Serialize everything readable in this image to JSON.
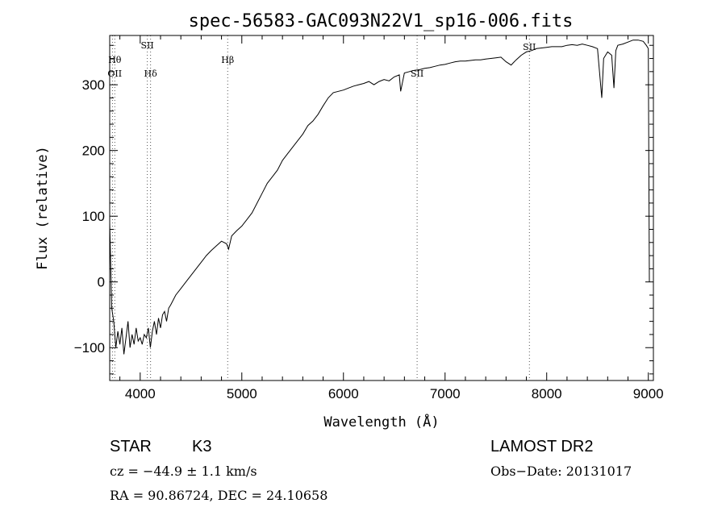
{
  "chart_data": {
    "type": "line",
    "title": "spec-56583-GAC093N22V1_sp16-006.fits",
    "xlabel": "Wavelength (Å)",
    "ylabel": "Flux (relative)",
    "xlim": [
      3700,
      9050
    ],
    "ylim": [
      -150,
      375
    ],
    "xticks": [
      4000,
      5000,
      6000,
      7000,
      8000,
      9000
    ],
    "yticks": [
      -100,
      0,
      100,
      200,
      300
    ],
    "grid": false,
    "series": [
      {
        "points": [
          [
            3700,
            90
          ],
          [
            3720,
            -40
          ],
          [
            3740,
            -60
          ],
          [
            3760,
            -100
          ],
          [
            3780,
            -75
          ],
          [
            3800,
            -95
          ],
          [
            3820,
            -70
          ],
          [
            3840,
            -110
          ],
          [
            3860,
            -85
          ],
          [
            3880,
            -60
          ],
          [
            3900,
            -100
          ],
          [
            3920,
            -80
          ],
          [
            3940,
            -95
          ],
          [
            3960,
            -70
          ],
          [
            3980,
            -90
          ],
          [
            4000,
            -85
          ],
          [
            4020,
            -95
          ],
          [
            4040,
            -80
          ],
          [
            4060,
            -85
          ],
          [
            4080,
            -70
          ],
          [
            4100,
            -100
          ],
          [
            4120,
            -75
          ],
          [
            4140,
            -60
          ],
          [
            4160,
            -80
          ],
          [
            4180,
            -55
          ],
          [
            4200,
            -70
          ],
          [
            4220,
            -50
          ],
          [
            4240,
            -45
          ],
          [
            4260,
            -60
          ],
          [
            4280,
            -40
          ],
          [
            4300,
            -35
          ],
          [
            4350,
            -20
          ],
          [
            4400,
            -10
          ],
          [
            4450,
            0
          ],
          [
            4500,
            10
          ],
          [
            4550,
            20
          ],
          [
            4600,
            30
          ],
          [
            4650,
            40
          ],
          [
            4700,
            48
          ],
          [
            4750,
            55
          ],
          [
            4800,
            62
          ],
          [
            4850,
            58
          ],
          [
            4870,
            50
          ],
          [
            4900,
            70
          ],
          [
            4950,
            78
          ],
          [
            5000,
            85
          ],
          [
            5050,
            95
          ],
          [
            5100,
            105
          ],
          [
            5150,
            120
          ],
          [
            5200,
            135
          ],
          [
            5250,
            150
          ],
          [
            5300,
            160
          ],
          [
            5350,
            170
          ],
          [
            5400,
            185
          ],
          [
            5450,
            195
          ],
          [
            5500,
            205
          ],
          [
            5550,
            215
          ],
          [
            5600,
            225
          ],
          [
            5650,
            238
          ],
          [
            5700,
            245
          ],
          [
            5750,
            255
          ],
          [
            5800,
            268
          ],
          [
            5850,
            280
          ],
          [
            5900,
            288
          ],
          [
            5950,
            290
          ],
          [
            6000,
            292
          ],
          [
            6050,
            295
          ],
          [
            6100,
            298
          ],
          [
            6150,
            300
          ],
          [
            6200,
            302
          ],
          [
            6250,
            305
          ],
          [
            6300,
            300
          ],
          [
            6350,
            305
          ],
          [
            6400,
            308
          ],
          [
            6450,
            306
          ],
          [
            6500,
            312
          ],
          [
            6550,
            315
          ],
          [
            6563,
            290
          ],
          [
            6600,
            318
          ],
          [
            6650,
            320
          ],
          [
            6700,
            322
          ],
          [
            6750,
            323
          ],
          [
            6800,
            325
          ],
          [
            6850,
            326
          ],
          [
            6900,
            328
          ],
          [
            6950,
            330
          ],
          [
            7000,
            331
          ],
          [
            7050,
            333
          ],
          [
            7100,
            335
          ],
          [
            7150,
            336
          ],
          [
            7200,
            336
          ],
          [
            7250,
            337
          ],
          [
            7300,
            338
          ],
          [
            7350,
            338
          ],
          [
            7400,
            339
          ],
          [
            7450,
            340
          ],
          [
            7500,
            341
          ],
          [
            7550,
            342
          ],
          [
            7600,
            335
          ],
          [
            7650,
            330
          ],
          [
            7700,
            338
          ],
          [
            7750,
            345
          ],
          [
            7800,
            350
          ],
          [
            7850,
            352
          ],
          [
            7900,
            355
          ],
          [
            7950,
            356
          ],
          [
            8000,
            357
          ],
          [
            8050,
            358
          ],
          [
            8100,
            358
          ],
          [
            8150,
            358
          ],
          [
            8200,
            360
          ],
          [
            8250,
            361
          ],
          [
            8300,
            360
          ],
          [
            8350,
            362
          ],
          [
            8400,
            360
          ],
          [
            8450,
            358
          ],
          [
            8500,
            355
          ],
          [
            8542,
            280
          ],
          [
            8560,
            340
          ],
          [
            8600,
            350
          ],
          [
            8640,
            345
          ],
          [
            8662,
            295
          ],
          [
            8680,
            352
          ],
          [
            8700,
            360
          ],
          [
            8750,
            362
          ],
          [
            8800,
            365
          ],
          [
            8850,
            368
          ],
          [
            8900,
            368
          ],
          [
            8950,
            366
          ],
          [
            8980,
            360
          ],
          [
            9000,
            355
          ],
          [
            9010,
            0
          ]
        ]
      }
    ],
    "lines": [
      {
        "label": "OII",
        "x": 3727
      },
      {
        "label": "Hθ",
        "x": 3750
      },
      {
        "label": "SII",
        "x": 4070
      },
      {
        "label": "Hδ",
        "x": 4102
      },
      {
        "label": "Hβ",
        "x": 4861
      },
      {
        "label": "SII",
        "x": 6725
      },
      {
        "label": "SII",
        "x": 7830
      }
    ]
  },
  "footer": {
    "class_label": "STAR",
    "subclass": "K3",
    "survey": "LAMOST DR2",
    "cz": "cz = −44.9 ± 1.1 km/s",
    "obs_date": "Obs−Date: 20131017",
    "coords": "RA =  90.86724, DEC =  24.10658"
  }
}
